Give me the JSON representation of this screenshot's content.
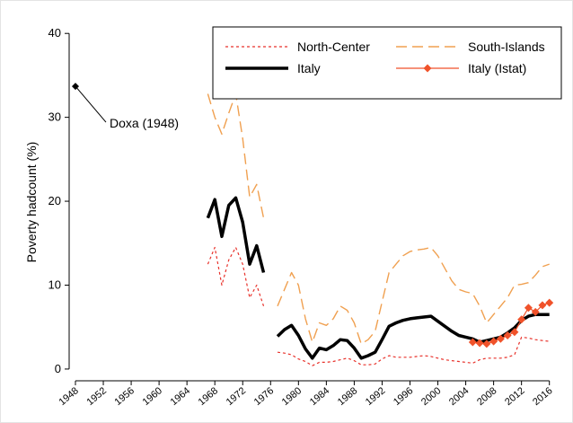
{
  "chart_data": {
    "type": "line",
    "y_label": "Poverty hadcount (%)",
    "x": [
      1967,
      1968,
      1969,
      1970,
      1971,
      1972,
      1973,
      1974,
      1975,
      null,
      1977,
      1978,
      1979,
      1980,
      1981,
      1982,
      1983,
      1984,
      1985,
      1986,
      1987,
      1988,
      1989,
      1990,
      1991,
      1992,
      1993,
      1994,
      1995,
      1996,
      1997,
      1998,
      1999,
      2000,
      2001,
      2002,
      2003,
      2004,
      2005,
      2006,
      2007,
      2008,
      2009,
      2010,
      2011,
      2012,
      2013,
      2014,
      2015,
      2016
    ],
    "series": [
      {
        "name": "North-Center",
        "color": "#e8312a",
        "dash": "3,3",
        "width": 1.2,
        "values": [
          12.5,
          14.5,
          10,
          13,
          14.5,
          12.5,
          8.5,
          10,
          7.5,
          null,
          2,
          1.9,
          1.7,
          1.2,
          0.9,
          0.4,
          0.8,
          0.8,
          0.9,
          1.1,
          1.3,
          1,
          0.5,
          0.5,
          0.6,
          1.2,
          1.6,
          1.4,
          1.4,
          1.4,
          1.5,
          1.6,
          1.5,
          1.3,
          1.1,
          1,
          0.9,
          0.8,
          0.7,
          1.1,
          1.3,
          1.3,
          1.3,
          1.4,
          1.7,
          3.8,
          3.7,
          3.5,
          3.4,
          3.3
        ]
      },
      {
        "name": "South-Islands",
        "color": "#f0a050",
        "dash": "12,6",
        "width": 1.4,
        "values": [
          32.8,
          30,
          28,
          30.5,
          32.8,
          27.5,
          20.5,
          22,
          18,
          null,
          7.5,
          9.5,
          11.5,
          10,
          6,
          3.2,
          5.5,
          5.2,
          6,
          7.5,
          7,
          5.5,
          3,
          3.5,
          4.5,
          8,
          11.5,
          12.5,
          13.5,
          14,
          14.2,
          14.3,
          14.5,
          13.5,
          12,
          10.5,
          9.5,
          9.2,
          9,
          7.5,
          5.5,
          6.5,
          7.5,
          8.5,
          10,
          10.1,
          10.3,
          11.2,
          12.2,
          12.5
        ]
      },
      {
        "name": "Italy",
        "color": "#000000",
        "dash": "none",
        "width": 3.5,
        "values": [
          18,
          20.2,
          15.8,
          19.5,
          20.4,
          17.5,
          12.5,
          14.7,
          11.5,
          null,
          3.9,
          4.7,
          5.2,
          4,
          2.4,
          1.3,
          2.5,
          2.3,
          2.8,
          3.5,
          3.4,
          2.5,
          1.3,
          1.6,
          2,
          3.5,
          5.1,
          5.5,
          5.8,
          6,
          6.1,
          6.2,
          6.3,
          5.7,
          5.1,
          4.5,
          4,
          3.8,
          3.6,
          3.2,
          3.4,
          3.6,
          3.8,
          4.3,
          4.9,
          5.8,
          6.3,
          6.5,
          6.5,
          6.5
        ]
      },
      {
        "name": "Italy (Istat)",
        "color": "#f0522a",
        "dash": "none",
        "width": 1.2,
        "marker": "diamond",
        "values": [
          null,
          null,
          null,
          null,
          null,
          null,
          null,
          null,
          null,
          null,
          null,
          null,
          null,
          null,
          null,
          null,
          null,
          null,
          null,
          null,
          null,
          null,
          null,
          null,
          null,
          null,
          null,
          null,
          null,
          null,
          null,
          null,
          null,
          null,
          null,
          null,
          null,
          null,
          3.2,
          3.1,
          3,
          3.3,
          3.6,
          4,
          4.4,
          5.9,
          7.3,
          6.8,
          7.6,
          7.9
        ]
      }
    ],
    "points": [
      {
        "x": 1948,
        "y": 33.7,
        "label": "Doxa (1948)",
        "color": "#000000"
      }
    ],
    "xlim": [
      1947.1,
      2018.1
    ],
    "xticks": [
      1948,
      1952,
      1956,
      1960,
      1964,
      1968,
      1972,
      1976,
      1980,
      1984,
      1988,
      1992,
      1996,
      2000,
      2004,
      2008,
      2012,
      2016
    ],
    "ylim": [
      -1.4,
      41.2
    ],
    "yticks": [
      0,
      10,
      20,
      30,
      40
    ],
    "legend": "top-right"
  }
}
